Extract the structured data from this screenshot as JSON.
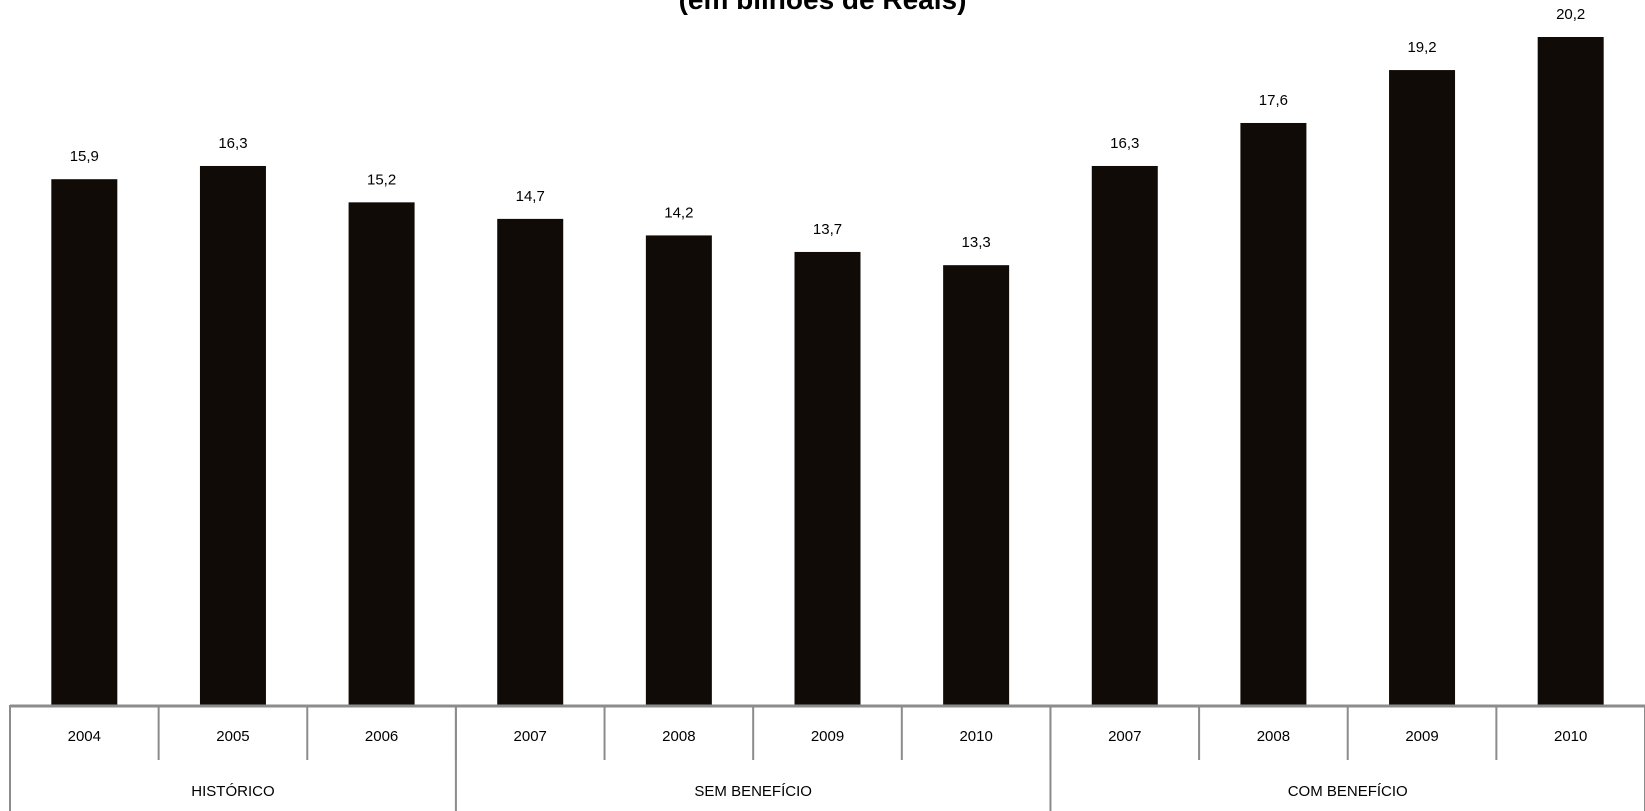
{
  "chart_data": {
    "type": "bar",
    "title": "(em bilhões de Reais)",
    "bar_color": "#100b06",
    "axis_color": "#8c8c8c",
    "categories": [
      "2004",
      "2005",
      "2006",
      "2007",
      "2008",
      "2009",
      "2010",
      "2007",
      "2008",
      "2009",
      "2010"
    ],
    "values": [
      15.9,
      16.3,
      15.2,
      14.7,
      14.2,
      13.7,
      13.3,
      16.3,
      17.6,
      19.2,
      20.2
    ],
    "value_labels": [
      "15,9",
      "16,3",
      "15,2",
      "14,7",
      "14,2",
      "13,7",
      "13,3",
      "16,3",
      "17,6",
      "19,2",
      "20,2"
    ],
    "groups": [
      {
        "label": "HISTÓRICO",
        "count": 3
      },
      {
        "label": "SEM BENEFÍCIO",
        "count": 4
      },
      {
        "label": "COM BENEFÍCIO",
        "count": 4
      }
    ],
    "ylim": [
      0,
      21
    ],
    "grid": false,
    "xlabel": "",
    "ylabel": ""
  }
}
